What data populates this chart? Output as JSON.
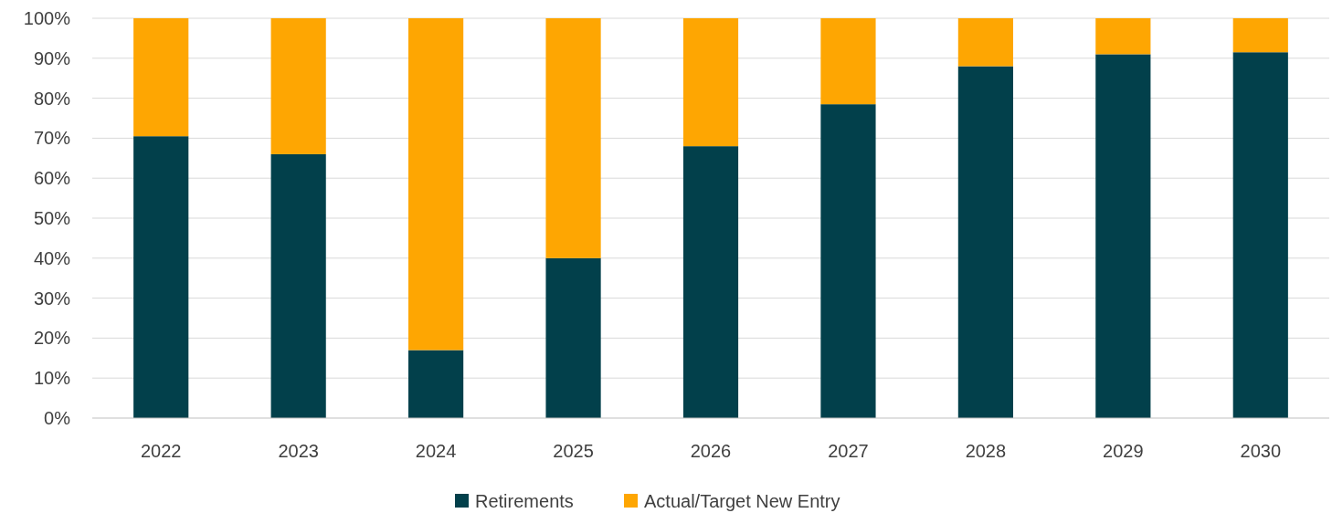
{
  "chart_data": {
    "type": "bar",
    "stacked": true,
    "categories": [
      "2022",
      "2023",
      "2024",
      "2025",
      "2026",
      "2027",
      "2028",
      "2029",
      "2030"
    ],
    "series": [
      {
        "name": "Retirements",
        "color": "#02404b",
        "values": [
          70.5,
          66,
          17,
          40,
          68,
          78.5,
          88,
          91,
          91.5
        ]
      },
      {
        "name": "Actual/Target New Entry",
        "color": "#fea602",
        "values": [
          29.5,
          34,
          83,
          60,
          32,
          21.5,
          12,
          9,
          8.5
        ]
      }
    ],
    "ylim": [
      0,
      100
    ],
    "yticks": [
      {
        "value": 0,
        "label": "0%"
      },
      {
        "value": 10,
        "label": "10%"
      },
      {
        "value": 20,
        "label": "20%"
      },
      {
        "value": 30,
        "label": "30%"
      },
      {
        "value": 40,
        "label": "40%"
      },
      {
        "value": 50,
        "label": "50%"
      },
      {
        "value": 60,
        "label": "60%"
      },
      {
        "value": 70,
        "label": "70%"
      },
      {
        "value": 80,
        "label": "80%"
      },
      {
        "value": 90,
        "label": "90%"
      },
      {
        "value": 100,
        "label": "100%"
      }
    ],
    "grid": "y",
    "legend": "bottom"
  }
}
